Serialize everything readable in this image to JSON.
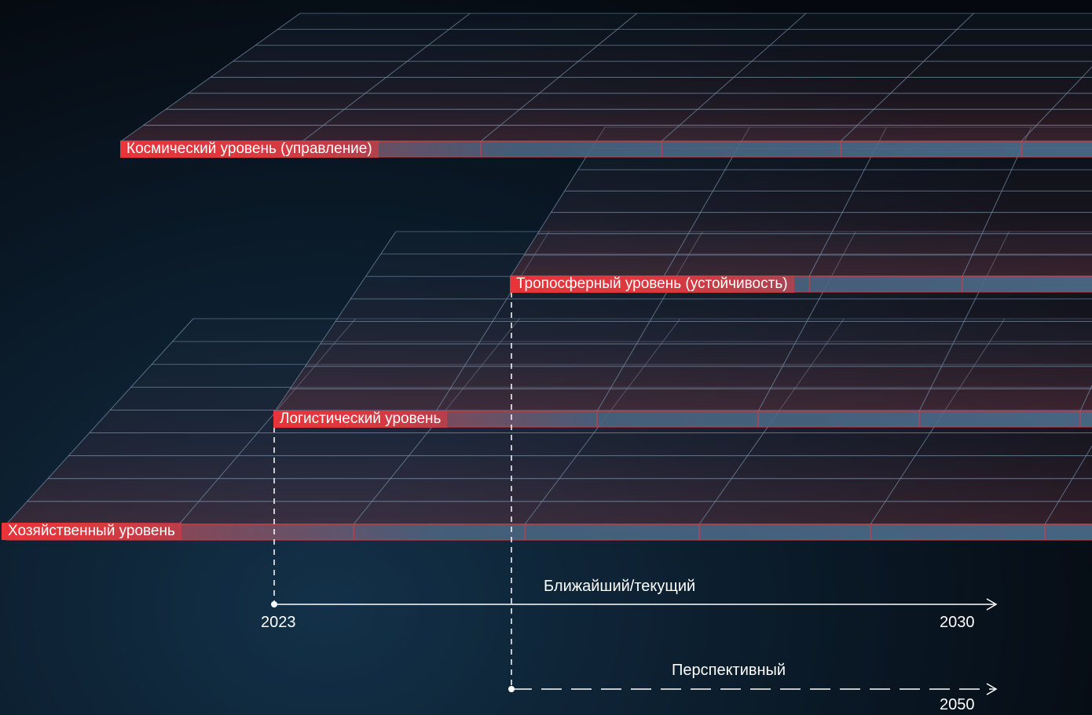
{
  "layers": {
    "space": "Космический уровень (управление)",
    "troposphere": "Тропосферный уровень  (устойчивость)",
    "logistics": "Логистический уровень",
    "economic": "Хозяйственный уровень"
  },
  "timelines": {
    "current": {
      "label": "Ближайший/текущий",
      "start": "2023",
      "end": "2030"
    },
    "perspective": {
      "label": "Перспективный",
      "end": "2050"
    }
  },
  "colors": {
    "grid_line": "#6f8aa3",
    "accent_red": "#e8343a",
    "background": "#0b1c2b"
  }
}
